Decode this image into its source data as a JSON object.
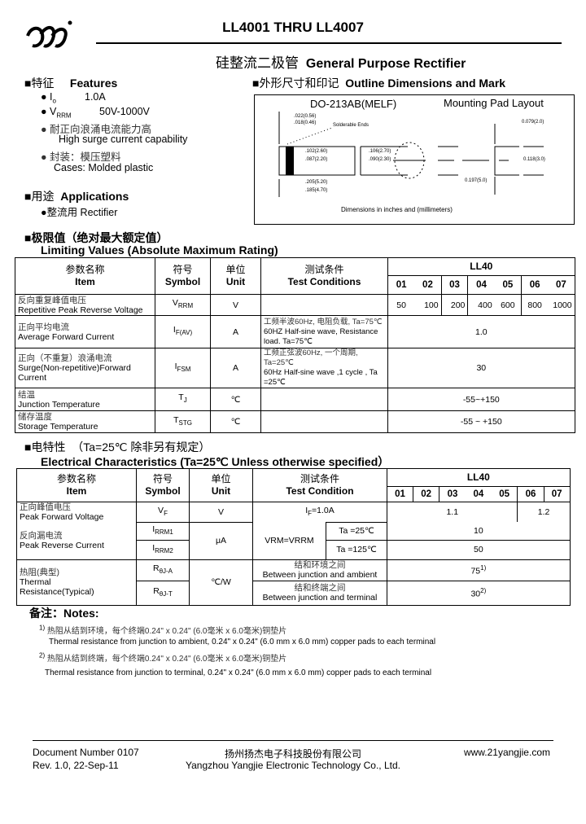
{
  "header": {
    "title": "LL4001 THRU LL4007",
    "subtitle_cn": "硅整流二极管",
    "subtitle_en": "General Purpose Rectifier"
  },
  "features": {
    "heading_cn": "■特征",
    "heading_en": "Features",
    "io_label": "I",
    "io_sub": "o",
    "io_value": "1.0A",
    "vrrm_label": "V",
    "vrrm_sub": "RRM",
    "vrrm_value": "50V-1000V",
    "surge_cn": "耐正向浪涌电流能力高",
    "surge_en": "High surge current capability",
    "case_cn": "封装：模压塑料",
    "case_en": "Cases: Molded plastic"
  },
  "applications": {
    "heading_cn": "■用途",
    "heading_en": "Applications",
    "item": "整流用 Rectifier"
  },
  "outline": {
    "heading_cn": "■外形尺寸和印记",
    "heading_en": "Outline Dimensions and Mark",
    "package": "DO-213AB(MELF)",
    "pad_layout": "Mounting Pad Layout",
    "dims": {
      "lead": ".022(0.56)",
      "lead2": ".018(0.46)",
      "solderable": "Solderable Ends",
      "dia1": ".102(2.60)",
      "dia2": ".087(2.20)",
      "end1": ".106(2.70)",
      "end2": ".090(2.30)",
      "len1": ".205(5.20)",
      "len2": ".185(4.70)",
      "pad_w": "0.079(2.0)",
      "pad_h": "0.118(3.0)",
      "pad_span": "0.197(5.0)"
    },
    "note": "Dimensions in inches and  (millimeters)"
  },
  "limiting": {
    "heading_cn": "■极限值（绝对最大额定值）",
    "heading_en": "Limiting Values (Absolute Maximum Rating)",
    "headers": {
      "item_cn": "参数名称",
      "item_en": "Item",
      "symbol_cn": "符号",
      "symbol_en": "Symbol",
      "unit_cn": "单位",
      "unit_en": "Unit",
      "cond_cn": "测试条件",
      "cond_en": "Test Conditions",
      "part": "LL40",
      "suffixes": [
        "01",
        "02",
        "03",
        "04",
        "05",
        "06",
        "07"
      ]
    },
    "rows": [
      {
        "cn": "反向重复峰值电压",
        "en": "Repetitive Peak Reverse Voltage",
        "sym": "V",
        "sub": "RRM",
        "unit": "V",
        "cond": "",
        "values": [
          "50",
          "100",
          "200",
          "400",
          "600",
          "800",
          "1000"
        ]
      },
      {
        "cn": "正向平均电流",
        "en": "Average Forward Current",
        "sym": "I",
        "sub": "F(AV)",
        "unit": "A",
        "cond_cn": "工频半波60Hz, 电阻负载, Ta=75℃",
        "cond": "60HZ Half-sine wave, Resistance load. Ta=75℃",
        "value": "1.0"
      },
      {
        "cn": "正向（不重复）浪涌电流",
        "en": "Surge(Non-repetitive)Forward Current",
        "sym": "I",
        "sub": "FSM",
        "unit": "A",
        "cond_cn": "工频正弦波60Hz, 一个周期, Ta=25℃",
        "cond": "60Hz Half-sine wave ,1 cycle , Ta =25℃",
        "value": "30"
      },
      {
        "cn": "结温",
        "en": "Junction   Temperature",
        "sym": "T",
        "sub": "J",
        "unit": "℃",
        "cond": "",
        "value": "-55~+150"
      },
      {
        "cn": "储存温度",
        "en": "Storage Temperature",
        "sym": "T",
        "sub": "STG",
        "unit": "℃",
        "cond": "",
        "value": "-55 ~ +150"
      }
    ]
  },
  "electrical": {
    "heading_cn": "■电特性",
    "heading_ta": "（Ta=25℃ 除非另有规定）",
    "heading_en": "Electrical Characteristics (Ta=25℃ Unless otherwise specified）",
    "headers": {
      "item_cn": "参数名称",
      "item_en": "Item",
      "symbol_cn": "符号",
      "symbol_en": "Symbol",
      "unit_cn": "单位",
      "unit_en": "Unit",
      "cond_cn": "测试条件",
      "cond_en": "Test Condition",
      "part": "LL40",
      "suffixes": [
        "01",
        "02",
        "03",
        "04",
        "05",
        "06",
        "07"
      ]
    },
    "vf": {
      "cn": "正向峰值电压",
      "en": "Peak Forward Voltage",
      "sym": "V",
      "sub": "F",
      "unit": "V",
      "cond": "I",
      "cond_sub": "F",
      "cond_rest": "=1.0A",
      "value_a": "1.1",
      "value_b": "1.2"
    },
    "ir": {
      "cn": "反向漏电流",
      "en": "Peak Reverse Current",
      "sym1": "I",
      "sub1": "RRM1",
      "sym2": "I",
      "sub2": "RRM2",
      "unit": "μA",
      "cond": "V<sub>RM</sub>=V<sub>RRM</sub>",
      "cond_main": "VRM=VRRM",
      "ta1": "Ta =25℃",
      "ta2": "Ta =125℃",
      "value1": "10",
      "value2": "50"
    },
    "rth": {
      "cn": "热阻(典型)",
      "en1": "Thermal",
      "en2": "Resistance(Typical)",
      "sym1": "R",
      "sub1": "θJ-A",
      "sym2": "R",
      "sub2": "θJ-T",
      "unit": "℃/W",
      "cond1_cn": "结和环境之间",
      "cond1": "Between junction and ambient",
      "cond2_cn": "结和终端之间",
      "cond2": "Between junction and terminal",
      "value1": "75",
      "sup1": "1)",
      "value2": "30",
      "sup2": "2)"
    }
  },
  "notes": {
    "heading": "备注：Notes:",
    "items": [
      {
        "mark": "1)",
        "cn": "热阻从结到环境，每个终端0.24\" x 0.24\" (6.0毫米 x 6.0毫米)铜垫片",
        "en": "Thermal resistance from junction to ambient, 0.24\" x 0.24\" (6.0 mm x 6.0 mm) copper pads to each terminal"
      },
      {
        "mark": "2)",
        "cn": "热阻从结到终端，每个终端0.24\" x 0.24\" (6.0毫米 x 6.0毫米)铜垫片",
        "en": "Thermal resistance from junction to terminal, 0.24\" x 0.24\" (6.0 mm x 6.0 mm) copper pads to each terminal"
      }
    ]
  },
  "footer": {
    "doc_number": "Document Number 0107",
    "revision": "Rev. 1.0, 22-Sep-11",
    "company_cn": "扬州扬杰电子科技股份有限公司",
    "company_en": "Yangzhou Yangjie Electronic Technology Co., Ltd.",
    "website": "www.21yangjie.com"
  },
  "logo_text": "YJ"
}
